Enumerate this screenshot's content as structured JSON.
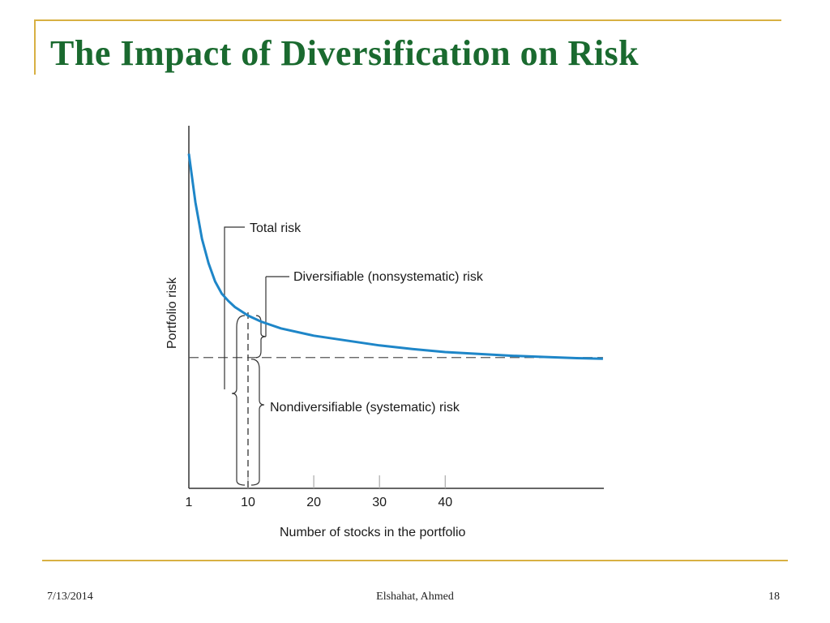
{
  "slide": {
    "title": "The Impact of Diversification on Risk",
    "footer_date": "7/13/2014",
    "footer_author": "Elshahat, Ahmed",
    "page_number": "18",
    "accent_color": "#d8b043",
    "title_color": "#1a6a2f"
  },
  "chart_data": {
    "type": "line",
    "title": "",
    "xlabel": "Number of stocks in the portfolio",
    "ylabel": "Portfolio risk",
    "x_ticks": [
      "1",
      "10",
      "20",
      "30",
      "40"
    ],
    "xlim": [
      1,
      64
    ],
    "ylim": [
      0,
      57
    ],
    "y_ticks_labeled": false,
    "grid": false,
    "series": [
      {
        "name": "",
        "color": "#1e86c8",
        "x": [
          1,
          2,
          3,
          4,
          5,
          6,
          7,
          8,
          10,
          12,
          15,
          20,
          25,
          30,
          35,
          40,
          45,
          50,
          55,
          60,
          64
        ],
        "y": [
          55,
          47,
          41,
          37,
          34,
          32,
          30.8,
          29.8,
          28.4,
          27.4,
          26.3,
          25.1,
          24.3,
          23.5,
          22.9,
          22.4,
          22.1,
          21.8,
          21.6,
          21.4,
          21.3
        ]
      }
    ],
    "reference_line": {
      "y": 21.5,
      "style": "dashed"
    },
    "marker_x": 10,
    "annotations": {
      "total_risk": "Total risk",
      "diversifiable": "Diversifiable (nonsystematic) risk",
      "nondiversifiable": "Nondiversifiable (systematic) risk"
    }
  }
}
